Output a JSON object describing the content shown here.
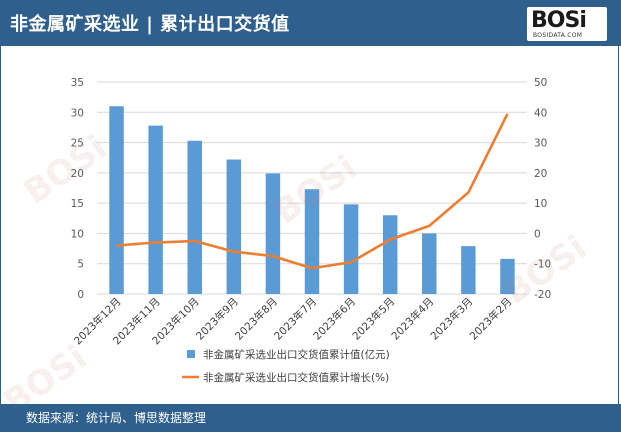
{
  "header": {
    "title": "非金属矿采选业 | 累计出口交货值",
    "logo_text": "BOSi",
    "logo_sub": "BOSIDATA.COM"
  },
  "footer": {
    "source": "数据来源：统计局、博思数据整理"
  },
  "colors": {
    "header_bg": "#2f5f8c",
    "bar": "#5b9bd5",
    "line": "#ed7d31"
  },
  "chart_data": {
    "type": "bar",
    "title": "",
    "categories": [
      "2023年12月",
      "2023年11月",
      "2023年10月",
      "2023年9月",
      "2023年8月",
      "2023年7月",
      "2023年6月",
      "2023年5月",
      "2023年4月",
      "2023年3月",
      "2023年2月"
    ],
    "series": [
      {
        "name": "非金属矿采选业出口交货值累计值(亿元)",
        "type": "bar",
        "axis": "left",
        "values": [
          31,
          27.8,
          25.3,
          22.2,
          19.9,
          17.3,
          14.8,
          13,
          10,
          7.9,
          5.8
        ]
      },
      {
        "name": "非金属矿采选业出口交货值累计增长(%)",
        "type": "line",
        "axis": "right",
        "values": [
          -4,
          -3,
          -2.5,
          -6,
          -7.5,
          -11.5,
          -9.5,
          -2,
          2.5,
          13.5,
          39.5
        ]
      }
    ],
    "y_left": {
      "min": 0,
      "max": 35,
      "ticks": [
        "0",
        "5",
        "10",
        "15",
        "20",
        "25",
        "30",
        "35"
      ]
    },
    "y_right": {
      "min": -20,
      "max": 50,
      "ticks": [
        "-20",
        "-10",
        "0",
        "10",
        "20",
        "30",
        "40",
        "50"
      ]
    },
    "grid": true,
    "legend_position": "bottom"
  }
}
